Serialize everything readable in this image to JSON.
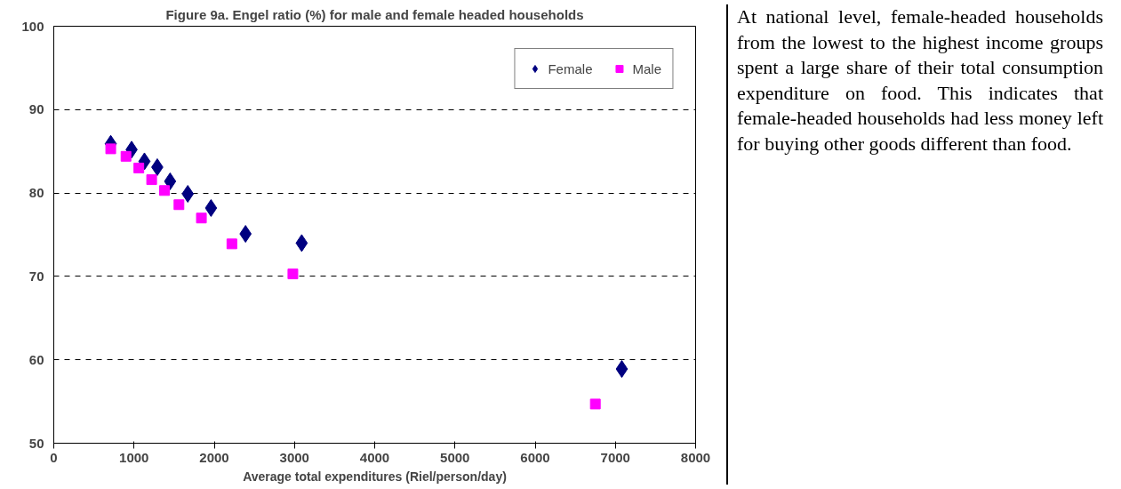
{
  "chart_data": [
    {
      "type": "scatter",
      "title": "Figure 9a. Engel ratio (%) for male and female headed households",
      "xlabel": "Average total expenditures (Riel/person/day)",
      "xlim": [
        0,
        8000
      ],
      "xticks": [
        0,
        1000,
        2000,
        3000,
        4000,
        5000,
        6000,
        7000,
        8000
      ],
      "ylim": [
        50,
        100
      ],
      "yticks": [
        50,
        60,
        70,
        80,
        90,
        100
      ],
      "grid": "y",
      "legend": "top right",
      "series": [
        {
          "name": "Female",
          "color": "#000080",
          "marker": "diamond",
          "x": [
            710,
            970,
            1130,
            1290,
            1450,
            1670,
            1960,
            2390,
            3090,
            7080
          ],
          "values": [
            85.9,
            85.2,
            83.8,
            83.1,
            81.4,
            79.9,
            78.2,
            75.1,
            74.0,
            58.9
          ]
        },
        {
          "name": "Male",
          "color": "#ff00ff",
          "marker": "square",
          "x": [
            710,
            900,
            1060,
            1220,
            1380,
            1560,
            1840,
            2220,
            2980,
            6750
          ],
          "values": [
            85.3,
            84.4,
            83.0,
            81.6,
            80.3,
            78.6,
            77.0,
            73.9,
            70.3,
            54.7
          ]
        }
      ]
    },
    {
      "type": "other",
      "annotations": [
        "At national level, female-headed households from the lowest to the highest income groups spent a large share of their total consumption expenditure on food. This indicates that female-headed households had less money left for buying other goods different than food."
      ]
    }
  ]
}
